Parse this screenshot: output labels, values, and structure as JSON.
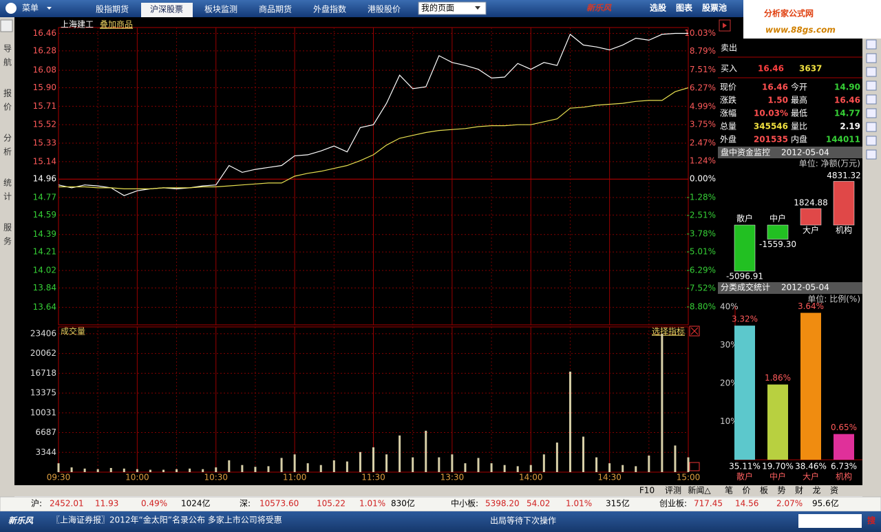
{
  "menu": {
    "main": "菜单",
    "tabs": [
      "股指期货",
      "沪深股票",
      "板块监测",
      "商品期货",
      "外盘指数",
      "港股股价"
    ],
    "page_select": "我的页面",
    "logo": "新乐风",
    "right": [
      "选股",
      "图表",
      "股票池"
    ]
  },
  "watermark": {
    "name": "分析家公式网",
    "url": "www.88gs.com"
  },
  "sidebar": [
    "导航",
    "报价",
    "分析",
    "统计",
    "服务"
  ],
  "quote": {
    "sell": "卖出",
    "buy": "买入",
    "buy_price": "16.46",
    "buy_volume": "3637",
    "rows": [
      [
        "现价",
        "16.46",
        "今开",
        "14.90"
      ],
      [
        "涨跌",
        "1.50",
        "最高",
        "16.46"
      ],
      [
        "涨幅",
        "10.03%",
        "最低",
        "14.77"
      ],
      [
        "总量",
        "345546",
        "量比",
        "2.19"
      ],
      [
        "外盘",
        "201535",
        "内盘",
        "144011"
      ]
    ]
  },
  "chart_data": [
    {
      "type": "line",
      "title": "上海建工",
      "overlay": "叠加商品",
      "categories": [
        "09:30",
        null,
        null,
        null,
        null,
        null,
        "10:00",
        null,
        null,
        null,
        null,
        null,
        "10:30",
        null,
        null,
        null,
        null,
        null,
        "11:00",
        null,
        null,
        null,
        null,
        null,
        "11:30",
        null,
        null,
        null,
        null,
        null,
        "13:30",
        null,
        null,
        null,
        null,
        null,
        "14:00",
        null,
        null,
        null,
        null,
        null,
        "14:30",
        null,
        null,
        null,
        null,
        null,
        "15:00"
      ],
      "series": [
        {
          "color": "#ffffff",
          "values": [
            14.9,
            14.87,
            14.9,
            14.89,
            14.87,
            14.79,
            14.84,
            14.86,
            14.87,
            14.86,
            14.87,
            14.89,
            14.9,
            15.1,
            15.03,
            15.06,
            15.08,
            15.1,
            15.2,
            15.21,
            15.25,
            15.3,
            15.24,
            15.49,
            15.52,
            15.74,
            16.03,
            15.89,
            15.91,
            16.23,
            16.16,
            16.13,
            16.09,
            16.0,
            16.01,
            16.15,
            16.09,
            16.16,
            16.13,
            16.45,
            16.34,
            16.32,
            16.29,
            16.34,
            16.41,
            16.39,
            16.45,
            16.46,
            16.46
          ]
        },
        {
          "color": "#e8e050",
          "values": [
            14.88,
            14.88,
            14.88,
            14.87,
            14.87,
            14.86,
            14.86,
            14.86,
            14.87,
            14.87,
            14.87,
            14.88,
            14.88,
            14.89,
            14.9,
            14.91,
            14.92,
            14.92,
            14.99,
            15.02,
            15.04,
            15.07,
            15.1,
            15.15,
            15.21,
            15.31,
            15.38,
            15.41,
            15.44,
            15.46,
            15.47,
            15.48,
            15.5,
            15.51,
            15.51,
            15.52,
            15.52,
            15.55,
            15.58,
            15.69,
            15.7,
            15.72,
            15.73,
            15.74,
            15.76,
            15.77,
            15.77,
            15.86,
            15.9
          ]
        }
      ],
      "ylim": [
        13.46,
        16.52
      ],
      "yticks": [
        16.46,
        16.28,
        16.08,
        {
          "value": 15.9,
          "label": "15.90"
        },
        15.71,
        15.52,
        15.33,
        15.14,
        14.96,
        14.77,
        14.59,
        14.39,
        14.21,
        14.02,
        13.84,
        13.64
      ],
      "y2lim": [
        -10.03,
        10.43
      ],
      "y2ticks": [
        {
          "value": 10.03,
          "label": "10.03%"
        },
        {
          "value": 8.79,
          "label": "8.79%"
        },
        {
          "value": 7.51,
          "label": "7.51%"
        },
        {
          "value": 6.27,
          "label": "6.27%"
        },
        {
          "value": 4.99,
          "label": "4.99%"
        },
        {
          "value": 3.75,
          "label": "3.75%"
        },
        {
          "value": 2.47,
          "label": "2.47%"
        },
        {
          "value": 1.24,
          "label": "1.24%"
        },
        {
          "value": 0,
          "label": "0.00%"
        },
        {
          "value": -1.28,
          "label": "-1.28%"
        },
        {
          "value": -2.51,
          "label": "-2.51%"
        },
        {
          "value": -3.78,
          "label": "-3.78%"
        },
        {
          "value": -5.01,
          "label": "-5.01%"
        },
        {
          "value": -6.29,
          "label": "-6.29%"
        },
        {
          "value": -7.52,
          "label": "-7.52%"
        },
        {
          "value": -8.8,
          "label": "-8.80%"
        }
      ],
      "grid": true
    },
    {
      "type": "bar",
      "title": "成交量",
      "indicator": "选择指标",
      "color": "#d8d0a8",
      "values": [
        1500,
        800,
        600,
        500,
        700,
        600,
        500,
        400,
        400,
        500,
        600,
        500,
        800,
        2000,
        1200,
        900,
        1000,
        2400,
        3000,
        1500,
        1200,
        2000,
        1800,
        3400,
        4200,
        3000,
        6200,
        2500,
        7000,
        2500,
        3000,
        1500,
        2400,
        1500,
        1200,
        1000,
        1200,
        3000,
        5000,
        17000,
        6000,
        2500,
        1500,
        1200,
        1000,
        2800,
        23400,
        4500,
        2500
      ],
      "ylim": [
        0,
        24560
      ],
      "yticks": [
        3344,
        6687,
        10031,
        13375,
        16718,
        20062,
        23406
      ],
      "grid": true
    },
    {
      "type": "bar",
      "title": "盘中资金监控",
      "date": "2012-05-04",
      "unit": "单位: 净额(万元)",
      "categories": [
        "散户",
        "中户",
        "大户",
        "机构"
      ],
      "values": [
        -5096.91,
        -1559.3,
        1824.88,
        4831.32
      ],
      "value_labels": [
        "-5096.91",
        "-1559.30",
        "1824.88",
        "4831.32"
      ],
      "colors": [
        "#22c022",
        "#22c022",
        "#e04848",
        "#e04848"
      ]
    },
    {
      "type": "bar",
      "title": "分类成交统计",
      "date": "2012-05-04",
      "unit": "单位: 比例(%)",
      "categories": [
        "散户",
        "中户",
        "大户",
        "机构"
      ],
      "values": [
        35.11,
        19.7,
        38.46,
        6.73
      ],
      "value_labels": [
        "35.11%",
        "19.70%",
        "38.46%",
        "6.73%"
      ],
      "top_labels": [
        "3.32%",
        "1.86%",
        "3.64%",
        "0.65%"
      ],
      "colors": [
        "#5cc8cc",
        "#b8d040",
        "#f08c10",
        "#e0309a"
      ],
      "ylim": [
        0,
        40
      ],
      "yticks": [
        {
          "value": 10,
          "label": "10%"
        },
        {
          "value": 20,
          "label": "20%"
        },
        {
          "value": 30,
          "label": "30%"
        },
        {
          "value": 40,
          "label": "40%"
        }
      ]
    }
  ],
  "toolbar": [
    "F10",
    "评测",
    "新闻△"
  ],
  "panel_tabs": [
    "笔",
    "价",
    "板",
    "势",
    "财",
    "龙",
    "资"
  ],
  "status": [
    {
      "name": "沪:",
      "values": [
        "2452.01",
        "11.93",
        "0.49%",
        "1024亿"
      ]
    },
    {
      "name": "深:",
      "values": [
        "10573.60",
        "105.22",
        "1.01%",
        "830亿"
      ]
    },
    {
      "name": "中小板:",
      "values": [
        "5398.20",
        "54.02",
        "1.01%",
        "315亿"
      ]
    },
    {
      "name": "创业板:",
      "values": [
        "717.45",
        "14.56",
        "2.07%",
        "95.6亿"
      ]
    }
  ],
  "footer": {
    "logo": "新乐风",
    "news": "〖上海证券报〗2012年“金太阳”名录公布 多家上市公司将受惠",
    "message": "出局等待下次操作",
    "search": "搜"
  }
}
